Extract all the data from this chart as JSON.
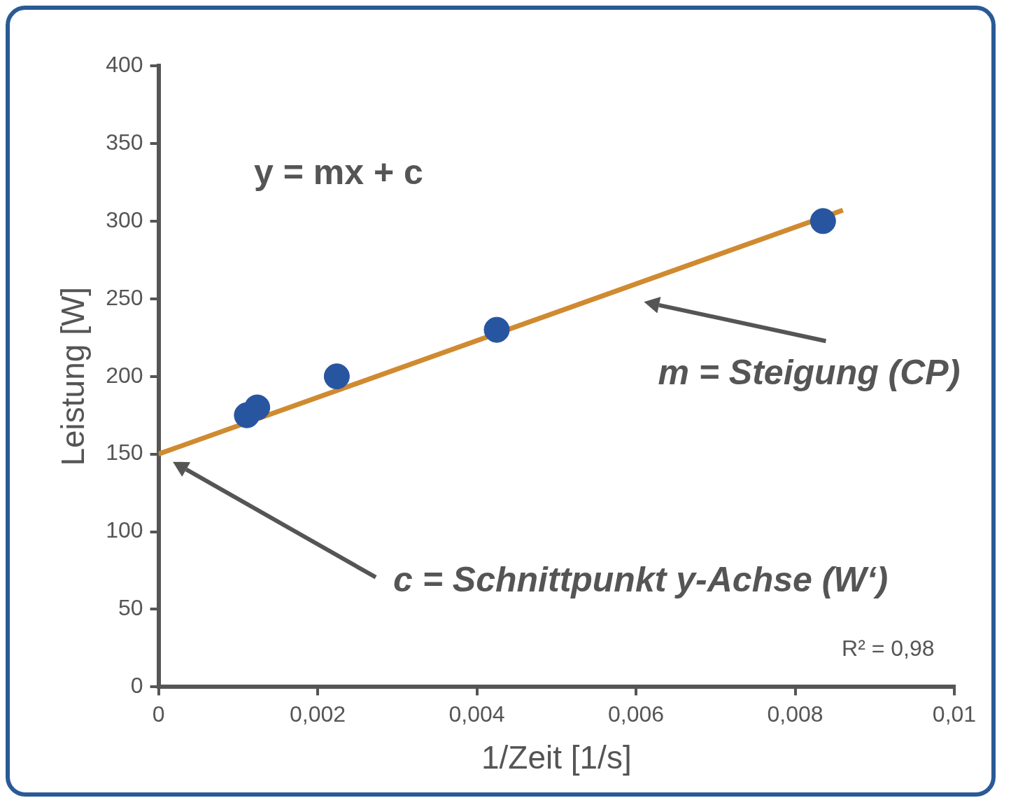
{
  "chart_data": {
    "type": "scatter",
    "xlabel": "1/Zeit [1/s]",
    "ylabel": "Leistung [W]",
    "annotations": [
      "y = mx + c",
      "m = Steigung (CP)",
      "c = Schnittpunkt y-Achse (W‘)",
      "R² = 0,98"
    ],
    "series": [
      {
        "color": "#2855a0",
        "marker": "circle",
        "x": [
          0.00111,
          0.00124,
          0.00224,
          0.00425,
          0.00835
        ],
        "values": [
          175,
          180,
          200,
          230,
          300
        ]
      },
      {
        "type": "line",
        "color": "#d08a30",
        "x": [
          0,
          0.0086
        ],
        "values": [
          150,
          307
        ]
      }
    ],
    "xlim": [
      0,
      0.01
    ],
    "xticks": [
      0,
      {
        "value": 0.002,
        "label": "0,002"
      },
      {
        "value": 0.004,
        "label": "0,004"
      },
      {
        "value": 0.006,
        "label": "0,006"
      },
      {
        "value": 0.008,
        "label": "0,008"
      },
      {
        "value": 0.01,
        "label": "0,01"
      }
    ],
    "ylim": [
      0,
      400
    ],
    "yticks": [
      0,
      50,
      100,
      150,
      200,
      250,
      300,
      350,
      400
    ],
    "grid": false,
    "legend": false,
    "line_style": "solid"
  }
}
